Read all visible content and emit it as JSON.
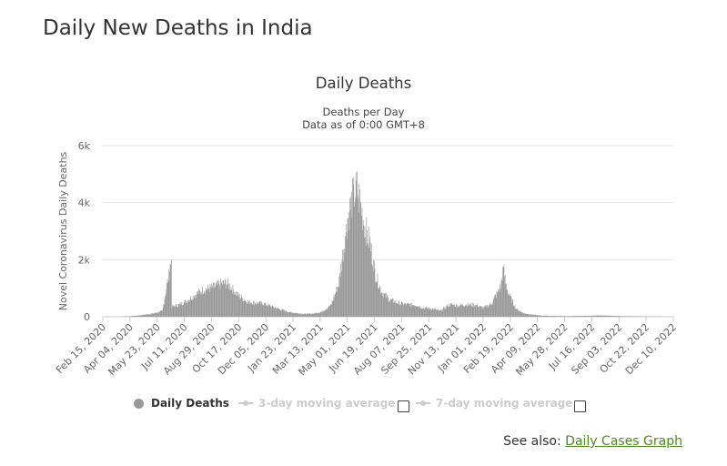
{
  "page": {
    "title": "Daily New Deaths in India"
  },
  "chart_data": {
    "type": "bar",
    "title": "Daily Deaths",
    "subtitle_line1": "Deaths per Day",
    "subtitle_line2": "Data as of 0:00 GMT+8",
    "ylabel": "Novel Coronavirus Daily Deaths",
    "xlabel": "",
    "ylim": [
      0,
      6000
    ],
    "yticks": [
      "0",
      "2k",
      "4k",
      "6k"
    ],
    "ytick_values": [
      0,
      2000,
      4000,
      6000
    ],
    "xticks": [
      "Feb 15, 2020",
      "Apr 04, 2020",
      "May 23, 2020",
      "Jul 11, 2020",
      "Aug 29, 2020",
      "Oct 17, 2020",
      "Dec 05, 2020",
      "Jan 23, 2021",
      "Mar 13, 2021",
      "May 01, 2021",
      "Jun 19, 2021",
      "Aug 07, 2021",
      "Sep 25, 2021",
      "Nov 13, 2021",
      "Jan 01, 2022",
      "Feb 19, 2022",
      "Apr 09, 2022",
      "May 28, 2022",
      "Jul 16, 2022",
      "Sep 03, 2022",
      "Oct 22, 2022",
      "Dec 10, 2022"
    ],
    "x_start": "2020-02-15",
    "x_end": "2022-12-10",
    "grid": true,
    "bar_color": "#999999",
    "series": [
      {
        "name": "Daily Deaths",
        "points": [
          [
            "2020-03-15",
            2
          ],
          [
            "2020-04-01",
            15
          ],
          [
            "2020-04-15",
            35
          ],
          [
            "2020-05-01",
            75
          ],
          [
            "2020-05-15",
            110
          ],
          [
            "2020-06-01",
            200
          ],
          [
            "2020-06-17",
            2003
          ],
          [
            "2020-06-18",
            340
          ],
          [
            "2020-07-01",
            420
          ],
          [
            "2020-07-15",
            560
          ],
          [
            "2020-08-01",
            800
          ],
          [
            "2020-08-15",
            960
          ],
          [
            "2020-09-01",
            1030
          ],
          [
            "2020-09-15",
            1150
          ],
          [
            "2020-09-25",
            1180
          ],
          [
            "2020-10-01",
            1070
          ],
          [
            "2020-10-15",
            760
          ],
          [
            "2020-11-01",
            530
          ],
          [
            "2020-11-15",
            490
          ],
          [
            "2020-12-01",
            460
          ],
          [
            "2020-12-15",
            360
          ],
          [
            "2021-01-01",
            250
          ],
          [
            "2021-01-15",
            165
          ],
          [
            "2021-02-01",
            120
          ],
          [
            "2021-02-15",
            95
          ],
          [
            "2021-03-01",
            115
          ],
          [
            "2021-03-15",
            170
          ],
          [
            "2021-04-01",
            400
          ],
          [
            "2021-04-15",
            1150
          ],
          [
            "2021-05-01",
            3450
          ],
          [
            "2021-05-10",
            4150
          ],
          [
            "2021-05-18",
            4500
          ],
          [
            "2021-05-25",
            3850
          ],
          [
            "2021-06-01",
            3150
          ],
          [
            "2021-06-10",
            2600
          ],
          [
            "2021-06-20",
            1500
          ],
          [
            "2021-07-01",
            900
          ],
          [
            "2021-07-15",
            600
          ],
          [
            "2021-08-01",
            480
          ],
          [
            "2021-08-15",
            430
          ],
          [
            "2021-09-01",
            420
          ],
          [
            "2021-09-15",
            310
          ],
          [
            "2021-10-01",
            280
          ],
          [
            "2021-10-15",
            200
          ],
          [
            "2021-11-01",
            430
          ],
          [
            "2021-11-15",
            390
          ],
          [
            "2021-12-01",
            430
          ],
          [
            "2021-12-15",
            420
          ],
          [
            "2022-01-01",
            310
          ],
          [
            "2022-01-15",
            450
          ],
          [
            "2022-02-01",
            1050
          ],
          [
            "2022-02-06",
            1730
          ],
          [
            "2022-02-10",
            1180
          ],
          [
            "2022-02-15",
            820
          ],
          [
            "2022-03-01",
            280
          ],
          [
            "2022-03-15",
            120
          ],
          [
            "2022-04-01",
            70
          ],
          [
            "2022-04-15",
            40
          ],
          [
            "2022-05-01",
            30
          ],
          [
            "2022-06-01",
            20
          ],
          [
            "2022-07-01",
            30
          ],
          [
            "2022-08-01",
            45
          ],
          [
            "2022-09-01",
            25
          ],
          [
            "2022-10-01",
            15
          ],
          [
            "2022-11-01",
            8
          ],
          [
            "2022-12-10",
            3
          ]
        ]
      }
    ],
    "legend": [
      {
        "label": "Daily Deaths",
        "color": "#999999",
        "enabled": true
      },
      {
        "label": "3-day moving average",
        "color": "#cccccc",
        "enabled": false
      },
      {
        "label": "7-day moving average",
        "color": "#cccccc",
        "enabled": false
      }
    ],
    "legend_position": "bottom-center"
  },
  "see_also": {
    "prefix": "See also:",
    "link_text": "Daily Cases Graph"
  }
}
